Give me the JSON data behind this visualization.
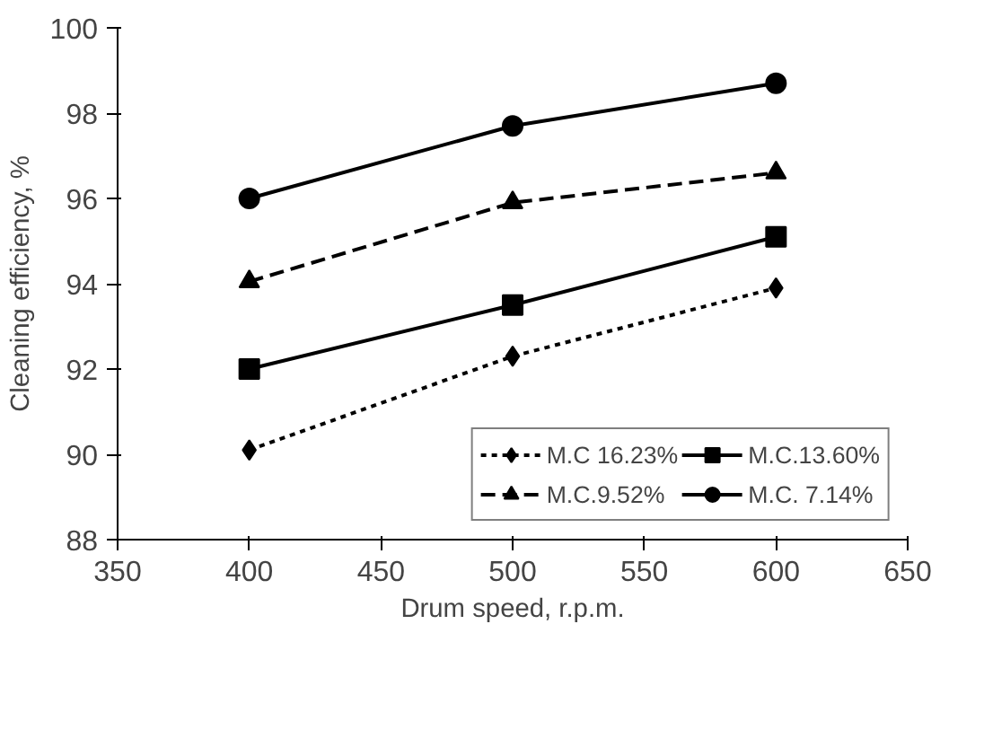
{
  "chart_data": {
    "type": "line",
    "xlabel": "Drum speed, r.p.m.",
    "ylabel": "Cleaning efficiency, %",
    "x": [
      400,
      500,
      600
    ],
    "series": [
      {
        "name": "M.C 16.23%",
        "color": "#000000",
        "values": [
          90.1,
          92.3,
          93.9
        ],
        "marker": "diamond",
        "line_style": "dotted"
      },
      {
        "name": "M.C.13.60%",
        "color": "#000000",
        "values": [
          92.0,
          93.5,
          95.1
        ],
        "marker": "square",
        "line_style": "solid"
      },
      {
        "name": "M.C.9.52%",
        "color": "#000000",
        "values": [
          94.05,
          95.9,
          96.6
        ],
        "marker": "triangle",
        "line_style": "dashed"
      },
      {
        "name": "M.C. 7.14%",
        "color": "#000000",
        "values": [
          96.0,
          97.7,
          98.7
        ],
        "marker": "circle",
        "line_style": "solid"
      }
    ],
    "xlim": [
      350,
      650
    ],
    "xticks": [
      350,
      400,
      450,
      500,
      550,
      600,
      650
    ],
    "ylim": [
      88,
      100
    ],
    "yticks": [
      88,
      90,
      92,
      94,
      96,
      98,
      100
    ],
    "grid": false,
    "legend": "bottom right"
  }
}
